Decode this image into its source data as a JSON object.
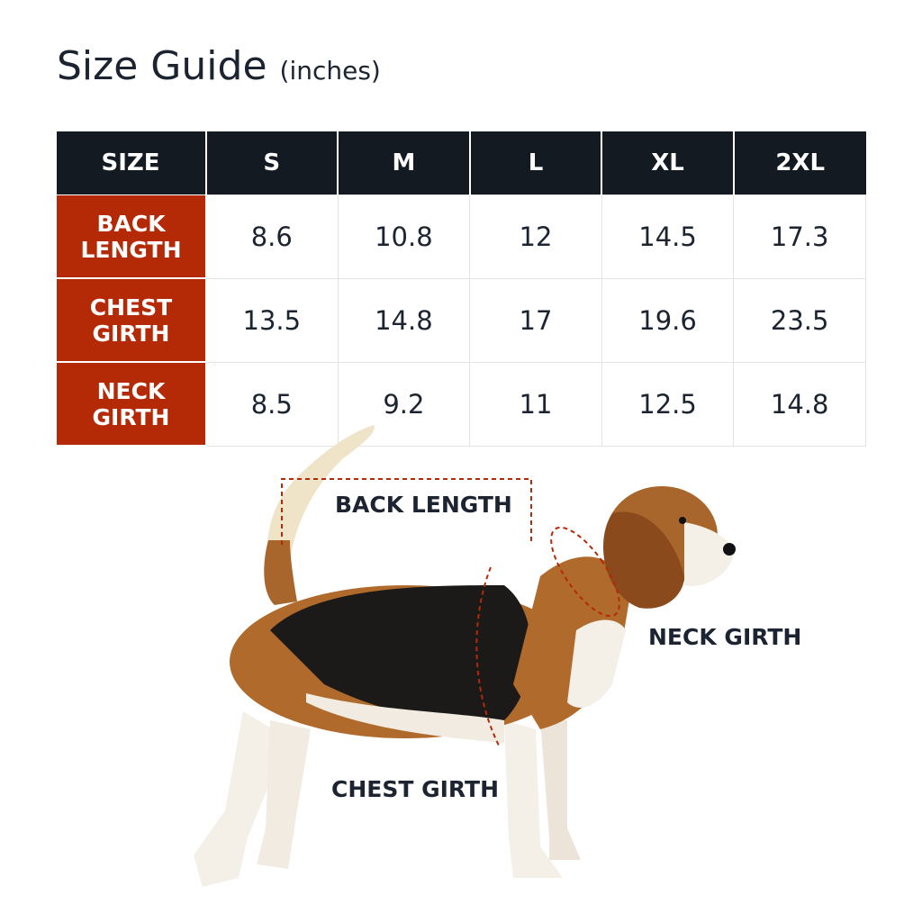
{
  "title": "Size Guide",
  "unit": "(inches)",
  "table": {
    "headers": [
      "SIZE",
      "S",
      "M",
      "L",
      "XL",
      "2XL"
    ],
    "rows": [
      {
        "label": "BACK LENGTH",
        "values": [
          "8.6",
          "10.8",
          "12",
          "14.5",
          "17.3"
        ]
      },
      {
        "label": "CHEST GIRTH",
        "values": [
          "13.5",
          "14.8",
          "17",
          "19.6",
          "23.5"
        ]
      },
      {
        "label": "NECK GIRTH",
        "values": [
          "8.5",
          "9.2",
          "11",
          "12.5",
          "14.8"
        ]
      }
    ]
  },
  "diagram": {
    "back_length": "BACK LENGTH",
    "neck_girth": "NECK GIRTH",
    "chest_girth": "CHEST GIRTH"
  },
  "colors": {
    "header": "#131a22",
    "row_label": "#b52a06",
    "measure_line": "#b52a06"
  }
}
